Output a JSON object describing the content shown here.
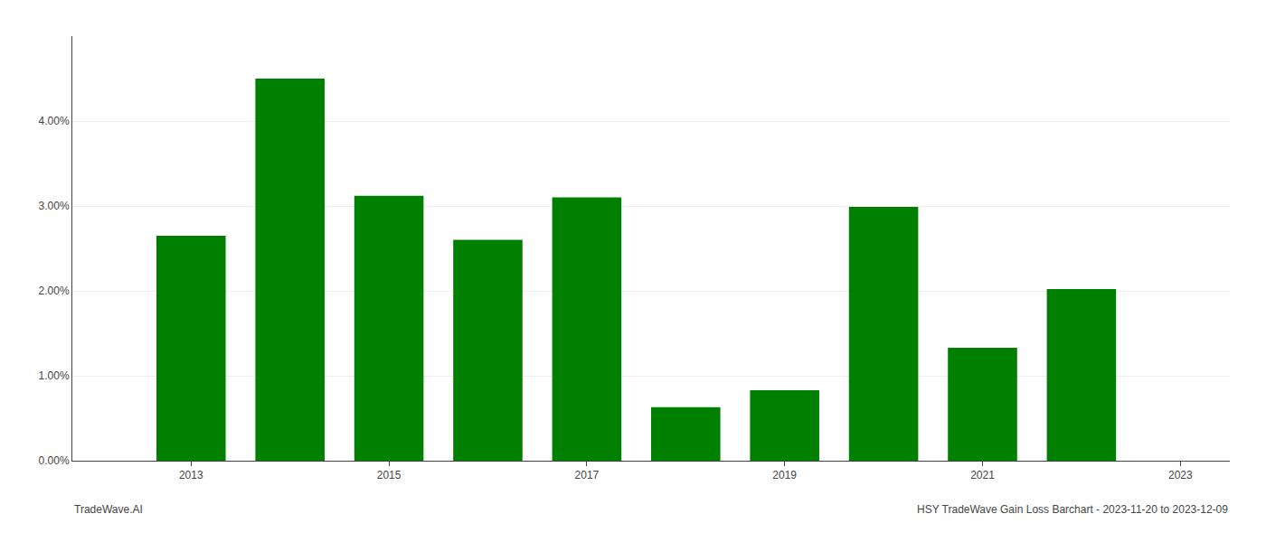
{
  "chart_data": {
    "type": "bar",
    "x": [
      2013,
      2014,
      2015,
      2016,
      2017,
      2018,
      2019,
      2020,
      2021,
      2022
    ],
    "values": [
      0.0265,
      0.045,
      0.0312,
      0.026,
      0.031,
      0.0063,
      0.0083,
      0.0299,
      0.0133,
      0.0202
    ],
    "color": "#008000",
    "xlim": [
      2011.8,
      2023.5
    ],
    "xticks": [
      2013,
      2015,
      2017,
      2019,
      2021,
      2023
    ],
    "ylim": [
      0,
      0.05
    ],
    "yticks": [
      {
        "value": 0.0,
        "label": "0.00%"
      },
      {
        "value": 0.01,
        "label": "1.00%"
      },
      {
        "value": 0.02,
        "label": "2.00%"
      },
      {
        "value": 0.03,
        "label": "3.00%"
      },
      {
        "value": 0.04,
        "label": "4.00%"
      }
    ],
    "grid": true,
    "annotations": [
      "TradeWave.AI",
      "HSY TradeWave Gain Loss Barchart - 2023-11-20 to 2023-12-09"
    ]
  }
}
